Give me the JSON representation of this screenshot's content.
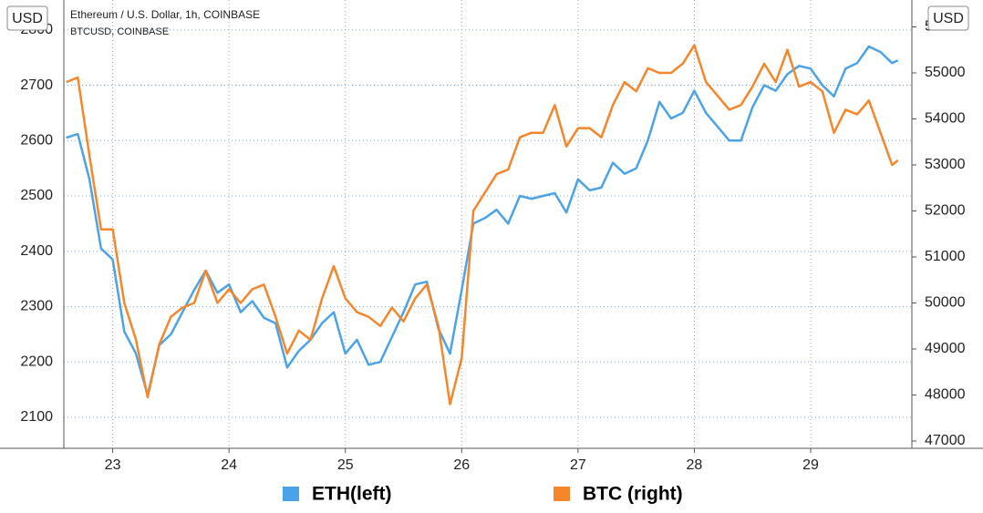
{
  "chart_data": {
    "type": "line",
    "title": "Ethereum / U.S. Dollar, 1h, COINBASE",
    "subtitle": "BTCUSD, COINBASE",
    "ylabel": "USD",
    "y2label": "USD",
    "x": [
      22.6,
      22.7,
      22.8,
      22.9,
      23.0,
      23.1,
      23.2,
      23.3,
      23.4,
      23.5,
      23.6,
      23.7,
      23.8,
      23.9,
      24.0,
      24.1,
      24.2,
      24.3,
      24.4,
      24.5,
      24.6,
      24.7,
      24.8,
      24.9,
      25.0,
      25.1,
      25.2,
      25.3,
      25.4,
      25.5,
      25.6,
      25.7,
      25.8,
      25.9,
      26.0,
      26.1,
      26.2,
      26.3,
      26.4,
      26.5,
      26.6,
      26.7,
      26.8,
      26.9,
      27.0,
      27.1,
      27.2,
      27.3,
      27.4,
      27.5,
      27.6,
      27.7,
      27.8,
      27.9,
      28.0,
      28.1,
      28.2,
      28.3,
      28.4,
      28.5,
      28.6,
      28.7,
      28.8,
      28.9,
      29.0,
      29.1,
      29.2,
      29.3,
      29.4,
      29.5,
      29.6,
      29.7,
      29.75
    ],
    "series": [
      {
        "name": "ETH(left)",
        "color": "#4aa3e8",
        "axis": "y",
        "values": [
          2605,
          2612,
          2530,
          2405,
          2385,
          2255,
          2215,
          2140,
          2230,
          2250,
          2290,
          2330,
          2365,
          2325,
          2340,
          2290,
          2310,
          2280,
          2270,
          2190,
          2220,
          2240,
          2270,
          2290,
          2215,
          2240,
          2195,
          2200,
          2245,
          2290,
          2340,
          2345,
          2260,
          2215,
          2330,
          2450,
          2460,
          2475,
          2450,
          2500,
          2495,
          2500,
          2505,
          2470,
          2530,
          2510,
          2515,
          2560,
          2540,
          2550,
          2600,
          2670,
          2640,
          2650,
          2690,
          2650,
          2625,
          2600,
          2600,
          2660,
          2700,
          2690,
          2720,
          2735,
          2730,
          2700,
          2680,
          2730,
          2740,
          2770,
          2760,
          2740,
          2745
        ]
      },
      {
        "name": "BTC (right)",
        "color": "#f7862b",
        "axis": "y2",
        "values": [
          54800,
          54900,
          53200,
          51600,
          51600,
          50000,
          49200,
          47950,
          49100,
          49700,
          49900,
          50000,
          50700,
          50000,
          50300,
          50000,
          50300,
          50400,
          49700,
          48900,
          49400,
          49200,
          50100,
          50800,
          50100,
          49800,
          49700,
          49500,
          49900,
          49600,
          50100,
          50400,
          49500,
          47800,
          48800,
          52000,
          52400,
          52800,
          52900,
          53600,
          53700,
          53700,
          54300,
          53400,
          53800,
          53800,
          53600,
          54300,
          54800,
          54600,
          55100,
          55000,
          55000,
          55200,
          55600,
          54800,
          54500,
          54200,
          54300,
          54700,
          55200,
          54800,
          55500,
          54700,
          54800,
          54600,
          53700,
          54200,
          54100,
          54400,
          53700,
          53000,
          53100
        ]
      }
    ],
    "xlim": [
      22.58,
      29.87
    ],
    "xticks": [
      23,
      24,
      25,
      26,
      27,
      28,
      29
    ],
    "ylim": [
      2044,
      2854
    ],
    "yticks": [
      2100,
      2200,
      2300,
      2400,
      2500,
      2600,
      2700,
      2800
    ],
    "y2lim": [
      46842,
      56584
    ],
    "y2ticks": [
      47000,
      48000,
      49000,
      50000,
      51000,
      52000,
      53000,
      54000,
      55000,
      56000
    ],
    "grid": true,
    "legend": "bottom"
  }
}
